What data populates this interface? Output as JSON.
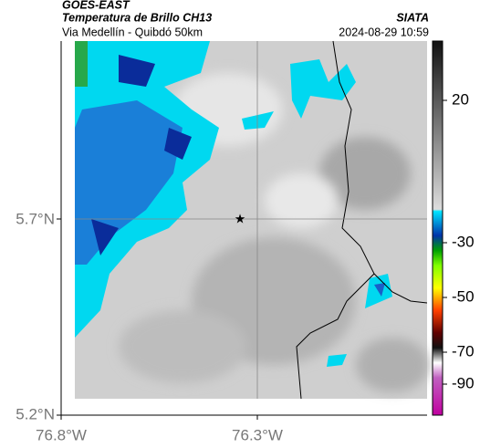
{
  "header": {
    "source": "GOES-EAST",
    "title": "Temperatura de Brillo CH13",
    "subtitle": "Via Medellín - Quibdó 50km",
    "org": "SIATA",
    "timestamp": "2024-08-29 10:59"
  },
  "map": {
    "lat_labels": [
      "5.7°N",
      "5.2°N"
    ],
    "lon_labels": [
      "76.8°W",
      "76.3°W"
    ]
  },
  "colorbar": {
    "tick_labels": [
      "20",
      "-30",
      "-50",
      "-70",
      "-90"
    ]
  }
}
